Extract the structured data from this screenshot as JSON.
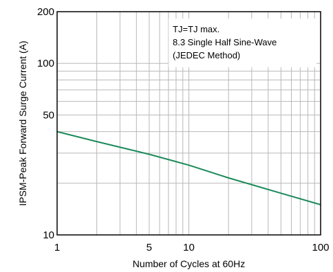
{
  "chart_data": {
    "type": "line",
    "xlabel": "Number of Cycles at 60Hz",
    "ylabel": "IPSM-Peak Forward Surge Current (A)",
    "xscale": "log",
    "yscale": "log",
    "xlim": [
      1,
      100
    ],
    "ylim": [
      10,
      200
    ],
    "xticks": [
      1,
      5,
      10,
      100
    ],
    "xtick_labels": [
      "1",
      "5",
      "10",
      "100"
    ],
    "yticks": [
      10,
      50,
      100,
      200
    ],
    "ytick_labels": [
      "10",
      "50",
      "100",
      "200"
    ],
    "grid": true,
    "annotation": [
      "TJ=TJ max.",
      "8.3 Single Half Sine-Wave",
      "(JEDEC Method)"
    ],
    "series": [
      {
        "color": "#1a8a5a",
        "x": [
          1,
          2,
          5,
          10,
          20,
          50,
          100
        ],
        "y": [
          40,
          35,
          29.5,
          25.5,
          21.5,
          17.5,
          15
        ]
      }
    ]
  }
}
